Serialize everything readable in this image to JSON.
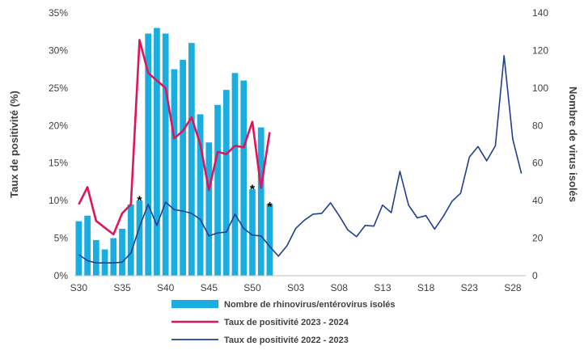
{
  "chart_data": {
    "type": "bar+line",
    "x_tick_labels": [
      "S30",
      "S35",
      "S40",
      "S45",
      "S50",
      "S03",
      "S08",
      "S13",
      "S18",
      "S23",
      "S28"
    ],
    "weeks": [
      "S30",
      "S31",
      "S32",
      "S33",
      "S34",
      "S35",
      "S36",
      "S37",
      "S38",
      "S39",
      "S40",
      "S41",
      "S42",
      "S43",
      "S44",
      "S45",
      "S46",
      "S47",
      "S48",
      "S49",
      "S50",
      "S51",
      "S52",
      "S01",
      "S02",
      "S03",
      "S04",
      "S05",
      "S06",
      "S07",
      "S08",
      "S09",
      "S10",
      "S11",
      "S12",
      "S13",
      "S14",
      "S15",
      "S16",
      "S17",
      "S18",
      "S19",
      "S20",
      "S21",
      "S22",
      "S23",
      "S24",
      "S25",
      "S26",
      "S27",
      "S28",
      "S29"
    ],
    "y_left": {
      "label": "Taux de positivité (%)",
      "min": 0,
      "max": 35,
      "step": 5,
      "ticks": [
        "0%",
        "5%",
        "10%",
        "15%",
        "20%",
        "25%",
        "30%",
        "35%"
      ]
    },
    "y_right": {
      "label": "Nombre de virus isolés",
      "min": 0,
      "max": 140,
      "step": 20,
      "ticks": [
        "0",
        "20",
        "40",
        "60",
        "80",
        "100",
        "120",
        "140"
      ]
    },
    "grid": false,
    "legend_position": "bottom",
    "series": [
      {
        "name": "Nombre de rhinovirus/entérovirus isolés",
        "type": "bar",
        "axis": "right",
        "color": "#1AADE0",
        "values": [
          29,
          32,
          19,
          14,
          20,
          25,
          38,
          40,
          129,
          132,
          129,
          110,
          115,
          124,
          86,
          71,
          91,
          99,
          108,
          104,
          46,
          79,
          38
        ]
      },
      {
        "name": "Taux de positivité 2023 - 2024",
        "type": "line",
        "axis": "left",
        "color": "#E0145A",
        "values": [
          9.5,
          11.8,
          7.3,
          6.4,
          5.5,
          8.3,
          9.5,
          31.4,
          27.0,
          26.0,
          25.0,
          18.3,
          19.3,
          21.1,
          17.5,
          11.4,
          16.5,
          16.2,
          17.3,
          17.1,
          20.5,
          11.7,
          19.1
        ]
      },
      {
        "name": "Taux de positivité 2022 - 2023",
        "type": "line",
        "axis": "left",
        "color": "#1F3F8F",
        "values": [
          2.8,
          2.0,
          1.7,
          1.7,
          1.7,
          1.8,
          3.0,
          6.5,
          9.5,
          6.7,
          9.8,
          8.8,
          8.6,
          8.3,
          7.5,
          5.3,
          5.7,
          5.8,
          8.2,
          6.3,
          5.4,
          5.3,
          3.9,
          2.6,
          4.0,
          6.3,
          7.4,
          8.2,
          8.3,
          9.7,
          8.0,
          6.1,
          5.2,
          6.7,
          6.6,
          9.4,
          8.4,
          13.9,
          9.4,
          7.7,
          8.0,
          6.2,
          7.9,
          9.9,
          11.0,
          15.8,
          17.2,
          15.3,
          17.3,
          29.3,
          18.2,
          13.6
        ]
      }
    ],
    "annotations": [
      {
        "text": "*",
        "week": "S37",
        "pct": 10.3
      },
      {
        "text": "*",
        "week": "S50",
        "pct": 11.8
      },
      {
        "text": "*",
        "week": "S52",
        "pct": 9.5
      }
    ]
  }
}
